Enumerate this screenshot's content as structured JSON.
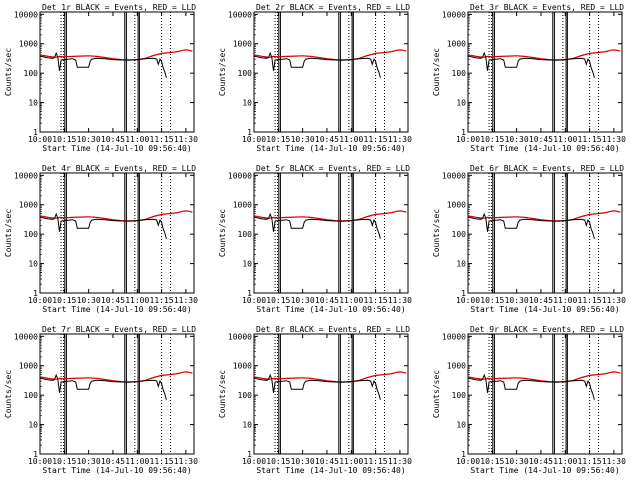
{
  "shared": {
    "x_labels": [
      "10:00",
      "10:15",
      "10:30",
      "10:45",
      "11:00",
      "11:15",
      "11:30"
    ],
    "x_ticks_min": [
      0,
      15,
      30,
      45,
      60,
      75,
      90
    ],
    "x_range_min": [
      0,
      95
    ],
    "y_labels": [
      "10000",
      "1000",
      "100",
      "10",
      "1"
    ],
    "y_ticks": [
      10000,
      1000,
      100,
      10,
      1
    ],
    "y_range": [
      1,
      12000
    ],
    "ylabel": "Counts/sec",
    "xlabel": "Start Time (14-Jul-10 09:56:40)",
    "dotted_lines_min": [
      13,
      14.5,
      58.5,
      75,
      80.5
    ],
    "solid_lines_min": [
      15.3,
      16.3,
      52.3,
      53.3,
      60.5,
      61.3
    ],
    "black_color": "#000000",
    "red_color": "#d40000"
  },
  "chart_data": [
    {
      "type": "line",
      "title": "Det 1r BLACK = Events, RED = LLD",
      "ylog": true
    },
    {
      "type": "line",
      "title": "Det 2r BLACK = Events, RED = LLD",
      "ylog": true
    },
    {
      "type": "line",
      "title": "Det 3r BLACK = Events, RED = LLD",
      "ylog": true
    },
    {
      "type": "line",
      "title": "Det 4r BLACK = Events, RED = LLD",
      "ylog": true
    },
    {
      "type": "line",
      "title": "Det 5r BLACK = Events, RED = LLD",
      "ylog": true
    },
    {
      "type": "line",
      "title": "Det 6r BLACK = Events, RED = LLD",
      "ylog": true
    },
    {
      "type": "line",
      "title": "Det 7r BLACK = Events, RED = LLD",
      "ylog": true
    },
    {
      "type": "line",
      "title": "Det 8r BLACK = Events, RED = LLD",
      "ylog": true
    },
    {
      "type": "line",
      "title": "Det 9r BLACK = Events, RED = LLD",
      "ylog": true
    }
  ],
  "series_shared": {
    "red": {
      "name": "RED = LLD",
      "x": [
        0,
        5,
        8,
        10,
        12,
        15,
        20,
        25,
        30,
        35,
        40,
        45,
        50,
        55,
        60,
        65,
        70,
        75,
        80,
        85,
        88,
        90,
        92,
        94
      ],
      "y": [
        420,
        370,
        355,
        350,
        370,
        360,
        370,
        380,
        390,
        370,
        340,
        310,
        290,
        285,
        290,
        320,
        400,
        470,
        500,
        540,
        600,
        620,
        600,
        560
      ]
    },
    "black": {
      "name": "BLACK = Events",
      "x": [
        0,
        5,
        8,
        9,
        10,
        11,
        12,
        13,
        15,
        18,
        20,
        22,
        23,
        23.5,
        30,
        31,
        32,
        35,
        40,
        45,
        50,
        55,
        60,
        65,
        70,
        72,
        73,
        74,
        75,
        76,
        77,
        78
      ],
      "y": [
        380,
        330,
        320,
        350,
        480,
        350,
        120,
        280,
        290,
        300,
        310,
        280,
        160,
        160,
        160,
        260,
        300,
        320,
        310,
        290,
        280,
        275,
        290,
        310,
        320,
        300,
        200,
        300,
        250,
        150,
        110,
        70
      ]
    }
  }
}
